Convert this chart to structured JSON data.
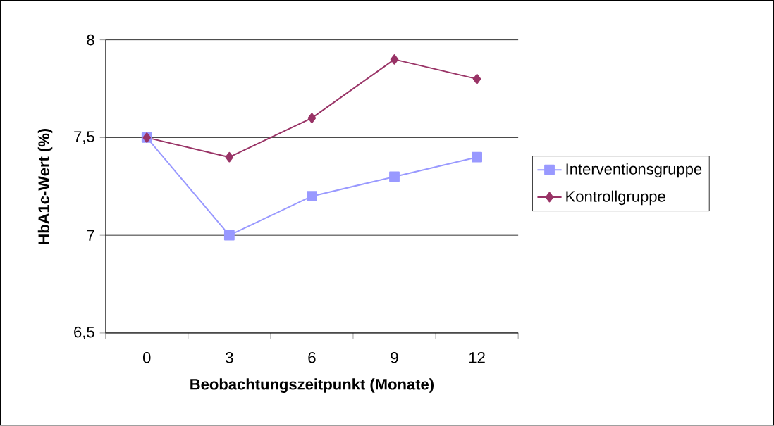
{
  "chart_data": {
    "type": "line",
    "xlabel": "Beobachtungszeitpunkt (Monate)",
    "ylabel": "HbA1c-Wert (%)",
    "categories": [
      "0",
      "3",
      "6",
      "9",
      "12"
    ],
    "series": [
      {
        "name": "Interventionsgruppe",
        "color": "#9999ff",
        "marker": "square",
        "values": [
          7.5,
          7.0,
          7.2,
          7.3,
          7.4
        ]
      },
      {
        "name": "Kontrollgruppe",
        "color": "#993366",
        "marker": "diamond",
        "values": [
          7.5,
          7.4,
          7.6,
          7.9,
          7.8
        ]
      }
    ],
    "ylim": [
      6.5,
      8
    ],
    "yticks": [
      {
        "value": 6.5,
        "label": "6,5"
      },
      7,
      {
        "value": 7.5,
        "label": "7,5"
      },
      8
    ],
    "grid": "y",
    "legend": "right",
    "line_style": "solid"
  }
}
